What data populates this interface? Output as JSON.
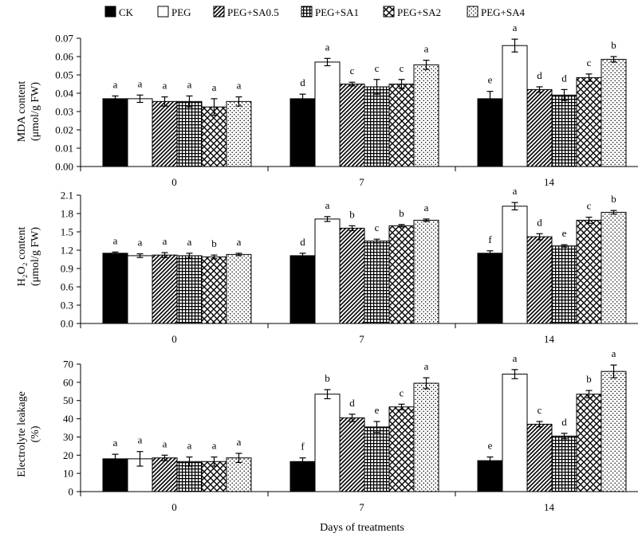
{
  "legend": [
    {
      "label": "CK",
      "pattern": "solid"
    },
    {
      "label": "PEG",
      "pattern": "white"
    },
    {
      "label": "PEG+SA0.5",
      "pattern": "diag"
    },
    {
      "label": "PEG+SA1",
      "pattern": "grid"
    },
    {
      "label": "PEG+SA2",
      "pattern": "lattice"
    },
    {
      "label": "PEG+SA4",
      "pattern": "dots"
    }
  ],
  "xlabel": "Days of treatments",
  "chart_data": [
    {
      "type": "bar",
      "ylabel_lines": [
        "MDA content",
        "(μmol/g FW)"
      ],
      "categories": [
        "0",
        "7",
        "14"
      ],
      "ylim": [
        0,
        0.07
      ],
      "ticks": [
        0,
        0.01,
        0.02,
        0.03,
        0.04,
        0.05,
        0.06,
        0.07
      ],
      "tick_labels": [
        "0.00",
        "0.01",
        "0.02",
        "0.03",
        "0.04",
        "0.05",
        "0.06",
        "0.07"
      ],
      "series": [
        {
          "name": "CK",
          "values": [
            0.037,
            0.037,
            0.037
          ],
          "errors": [
            0.0015,
            0.0025,
            0.004
          ],
          "letters": [
            "a",
            "d",
            "e"
          ]
        },
        {
          "name": "PEG",
          "values": [
            0.037,
            0.057,
            0.066
          ],
          "errors": [
            0.002,
            0.002,
            0.0035
          ],
          "letters": [
            "a",
            "a",
            "a"
          ]
        },
        {
          "name": "PEG+SA0.5",
          "values": [
            0.0355,
            0.045,
            0.042
          ],
          "errors": [
            0.0025,
            0.001,
            0.0015
          ],
          "letters": [
            "a",
            "c",
            "d"
          ]
        },
        {
          "name": "PEG+SA1",
          "values": [
            0.0355,
            0.0435,
            0.039
          ],
          "errors": [
            0.003,
            0.004,
            0.003
          ],
          "letters": [
            "a",
            "c",
            "d"
          ]
        },
        {
          "name": "PEG+SA2",
          "values": [
            0.0325,
            0.045,
            0.0485
          ],
          "errors": [
            0.0045,
            0.0025,
            0.002
          ],
          "letters": [
            "a",
            "c",
            "c"
          ]
        },
        {
          "name": "PEG+SA4",
          "values": [
            0.0355,
            0.0555,
            0.0585
          ],
          "errors": [
            0.0025,
            0.0025,
            0.0015
          ],
          "letters": [
            "a",
            "a",
            "b"
          ]
        }
      ]
    },
    {
      "type": "bar",
      "ylabel_lines": [
        "H₂O₂ content",
        "(μmol/g FW)"
      ],
      "categories": [
        "0",
        "7",
        "14"
      ],
      "ylim": [
        0,
        2.1
      ],
      "ticks": [
        0,
        0.3,
        0.6,
        0.9,
        1.2,
        1.5,
        1.8,
        2.1
      ],
      "tick_labels": [
        "0.0",
        "0.3",
        "0.6",
        "0.9",
        "1.2",
        "1.5",
        "1.8",
        "2.1"
      ],
      "series": [
        {
          "name": "CK",
          "values": [
            1.15,
            1.11,
            1.15
          ],
          "errors": [
            0.02,
            0.04,
            0.04
          ],
          "letters": [
            "a",
            "d",
            "f"
          ]
        },
        {
          "name": "PEG",
          "values": [
            1.11,
            1.71,
            1.92
          ],
          "errors": [
            0.03,
            0.04,
            0.06
          ],
          "letters": [
            "a",
            "a",
            "a"
          ]
        },
        {
          "name": "PEG+SA0.5",
          "values": [
            1.12,
            1.56,
            1.42
          ],
          "errors": [
            0.04,
            0.04,
            0.05
          ],
          "letters": [
            "a",
            "b",
            "d"
          ]
        },
        {
          "name": "PEG+SA1",
          "values": [
            1.11,
            1.35,
            1.27
          ],
          "errors": [
            0.04,
            0.03,
            0.02
          ],
          "letters": [
            "a",
            "c",
            "e"
          ]
        },
        {
          "name": "PEG+SA2",
          "values": [
            1.09,
            1.6,
            1.69
          ],
          "errors": [
            0.03,
            0.02,
            0.05
          ],
          "letters": [
            "b",
            "b",
            "c"
          ]
        },
        {
          "name": "PEG+SA4",
          "values": [
            1.13,
            1.69,
            1.82
          ],
          "errors": [
            0.02,
            0.02,
            0.03
          ],
          "letters": [
            "a",
            "a",
            "b"
          ]
        }
      ]
    },
    {
      "type": "bar",
      "ylabel_lines": [
        "Electrolyte leakage",
        "(%)"
      ],
      "categories": [
        "0",
        "7",
        "14"
      ],
      "ylim": [
        0,
        70
      ],
      "ticks": [
        0,
        10,
        20,
        30,
        40,
        50,
        60,
        70
      ],
      "tick_labels": [
        "0",
        "10",
        "20",
        "30",
        "40",
        "50",
        "60",
        "70"
      ],
      "series": [
        {
          "name": "CK",
          "values": [
            18,
            16.5,
            17
          ],
          "errors": [
            2.5,
            2,
            2
          ],
          "letters": [
            "a",
            "f",
            "e"
          ]
        },
        {
          "name": "PEG",
          "values": [
            18,
            53.5,
            64.5
          ],
          "errors": [
            4,
            2.5,
            2.5
          ],
          "letters": [
            "a",
            "b",
            "a"
          ]
        },
        {
          "name": "PEG+SA0.5",
          "values": [
            18.5,
            40.5,
            37
          ],
          "errors": [
            1.5,
            2,
            1.5
          ],
          "letters": [
            "a",
            "d",
            "c"
          ]
        },
        {
          "name": "PEG+SA1",
          "values": [
            16.5,
            35.5,
            30.5
          ],
          "errors": [
            2.5,
            3,
            1.5
          ],
          "letters": [
            "a",
            "e",
            "d"
          ]
        },
        {
          "name": "PEG+SA2",
          "values": [
            16.5,
            46.5,
            53.5
          ],
          "errors": [
            2.5,
            1.5,
            2
          ],
          "letters": [
            "a",
            "c",
            "b"
          ]
        },
        {
          "name": "PEG+SA4",
          "values": [
            18.5,
            59.5,
            66
          ],
          "errors": [
            2.5,
            3,
            3.5
          ],
          "letters": [
            "a",
            "a",
            "a"
          ]
        }
      ]
    }
  ]
}
